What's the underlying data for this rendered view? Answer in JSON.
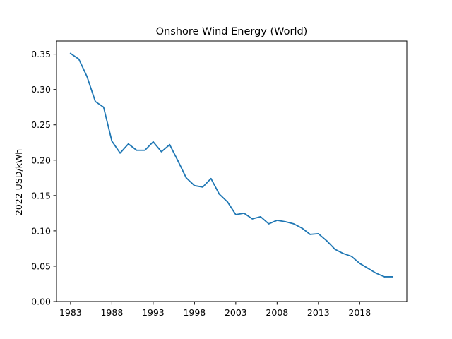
{
  "chart_data": {
    "type": "line",
    "title": "Onshore Wind Energy (World)",
    "xlabel": "",
    "ylabel": "2022 USD/kWh",
    "xlim": [
      1981.3,
      2023.7
    ],
    "ylim": [
      0.0,
      0.3686
    ],
    "x_ticks": [
      1983,
      1988,
      1993,
      1998,
      2003,
      2008,
      2013,
      2018
    ],
    "y_ticks": [
      0.0,
      0.05,
      0.1,
      0.15,
      0.2,
      0.25,
      0.3,
      0.35
    ],
    "y_tick_labels": [
      "0.00",
      "0.05",
      "0.10",
      "0.15",
      "0.20",
      "0.25",
      "0.30",
      "0.35"
    ],
    "grid": false,
    "line_color": "#1f77b4",
    "x": [
      1983,
      1984,
      1985,
      1986,
      1987,
      1988,
      1989,
      1990,
      1991,
      1992,
      1993,
      1994,
      1995,
      1996,
      1997,
      1998,
      1999,
      2000,
      2001,
      2002,
      2003,
      2004,
      2005,
      2006,
      2007,
      2008,
      2009,
      2010,
      2011,
      2012,
      2013,
      2014,
      2015,
      2016,
      2017,
      2018,
      2019,
      2020,
      2021,
      2022
    ],
    "values": [
      0.351,
      0.343,
      0.318,
      0.283,
      0.275,
      0.227,
      0.21,
      0.223,
      0.214,
      0.214,
      0.226,
      0.212,
      0.222,
      0.199,
      0.175,
      0.164,
      0.162,
      0.174,
      0.152,
      0.141,
      0.123,
      0.125,
      0.117,
      0.12,
      0.11,
      0.115,
      0.113,
      0.11,
      0.104,
      0.095,
      0.096,
      0.086,
      0.074,
      0.068,
      0.064,
      0.054,
      0.047,
      0.04,
      0.035,
      0.035
    ]
  }
}
